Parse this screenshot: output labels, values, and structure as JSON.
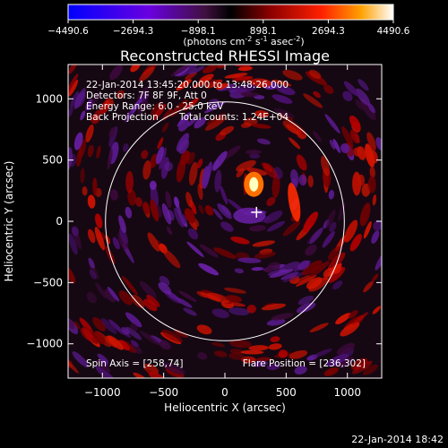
{
  "colorbar": {
    "ticks": [
      "-4490.6",
      "-2694.3",
      "-898.1",
      "898.1",
      "2694.3",
      "4490.6"
    ],
    "unit_label": {
      "pre": "(photons cm",
      "exp1": "-2",
      "mid1": " s",
      "exp2": "-1",
      "mid2": " asec",
      "exp3": "-2",
      "post": ")"
    }
  },
  "chart_data": {
    "type": "heatmap",
    "title": "Reconstructed RHESSI Image",
    "xlabel": "Heliocentric X (arcsec)",
    "ylabel": "Heliocentric Y (arcsec)",
    "xlim": [
      -1280,
      1280
    ],
    "ylim": [
      -1280,
      1280
    ],
    "xticks": [
      -1000,
      -500,
      0,
      500,
      1000
    ],
    "yticks": [
      -1000,
      -500,
      0,
      500,
      1000
    ],
    "xtick_labels": [
      "−1000",
      "−500",
      "0",
      "500",
      "1000"
    ],
    "ytick_labels": [
      "−1000",
      "−500",
      "0",
      "500",
      "1000"
    ],
    "value_range": [
      -4490.6,
      4490.6
    ],
    "solar_limb_radius": 975,
    "source_peak": [
      236,
      302
    ],
    "cross_marker": [
      258,
      74
    ],
    "info_lines": [
      "22-Jan-2014 13:45:20.000 to 13:48:26.000",
      "Detectors: 7F 8F 9F, Att 0",
      "Energy Range: 6.0 - 25.0 keV"
    ],
    "method_label": "Back Projection",
    "counts_label": "Total counts: 1.24E+04",
    "spin_axis_label": "Spin Axis = [258,74]",
    "flare_position_label": "Flare Position = [236,302]"
  },
  "footer": {
    "timestamp": "22-Jan-2014 18:42"
  }
}
